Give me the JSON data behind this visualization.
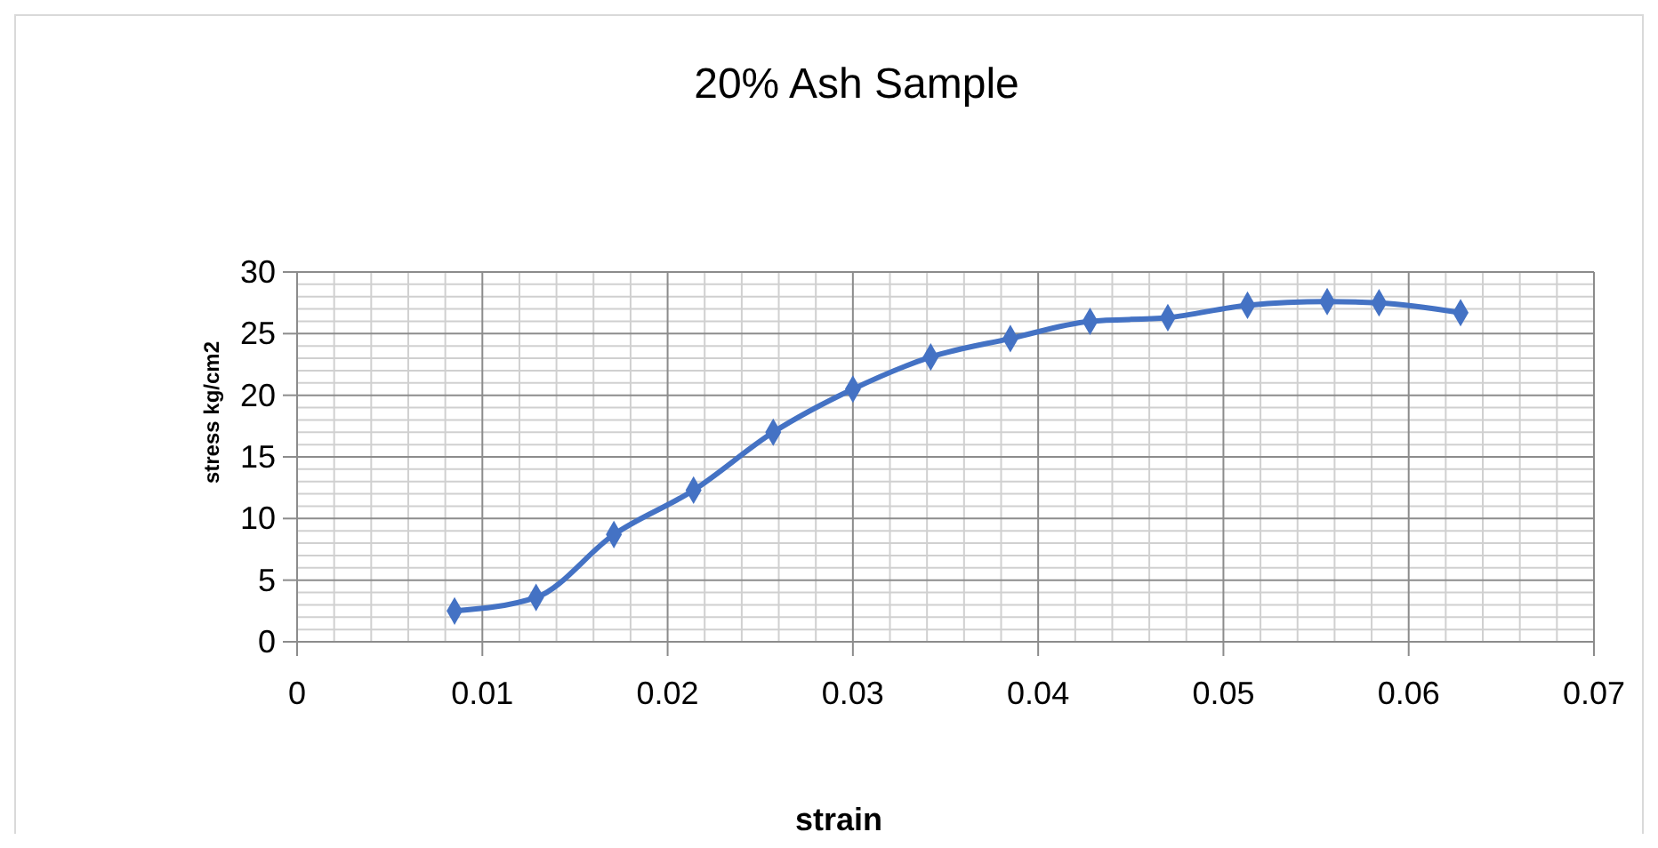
{
  "chart_data": {
    "type": "line",
    "title": "20% Ash Sample",
    "xlabel": "strain",
    "ylabel": "stress kg/cm2",
    "x": [
      0.0085,
      0.0129,
      0.0171,
      0.0214,
      0.0257,
      0.03,
      0.0342,
      0.0385,
      0.0428,
      0.047,
      0.0513,
      0.0556,
      0.0584,
      0.0628
    ],
    "series": [
      {
        "color": "#4472c4",
        "values": [
          2.5,
          3.6,
          8.7,
          12.3,
          17.0,
          20.5,
          23.1,
          24.6,
          26.0,
          26.3,
          27.3,
          27.6,
          27.5,
          26.7
        ]
      }
    ],
    "xlim": [
      0,
      0.07
    ],
    "xticks": [
      0,
      0.01,
      0.02,
      0.03,
      0.04,
      0.05,
      0.06,
      0.07
    ],
    "ylim": [
      0,
      30
    ],
    "yticks": [
      0,
      5,
      10,
      15,
      20,
      25,
      30
    ],
    "grid": true,
    "marker": "diamond",
    "line_style": "solid"
  }
}
